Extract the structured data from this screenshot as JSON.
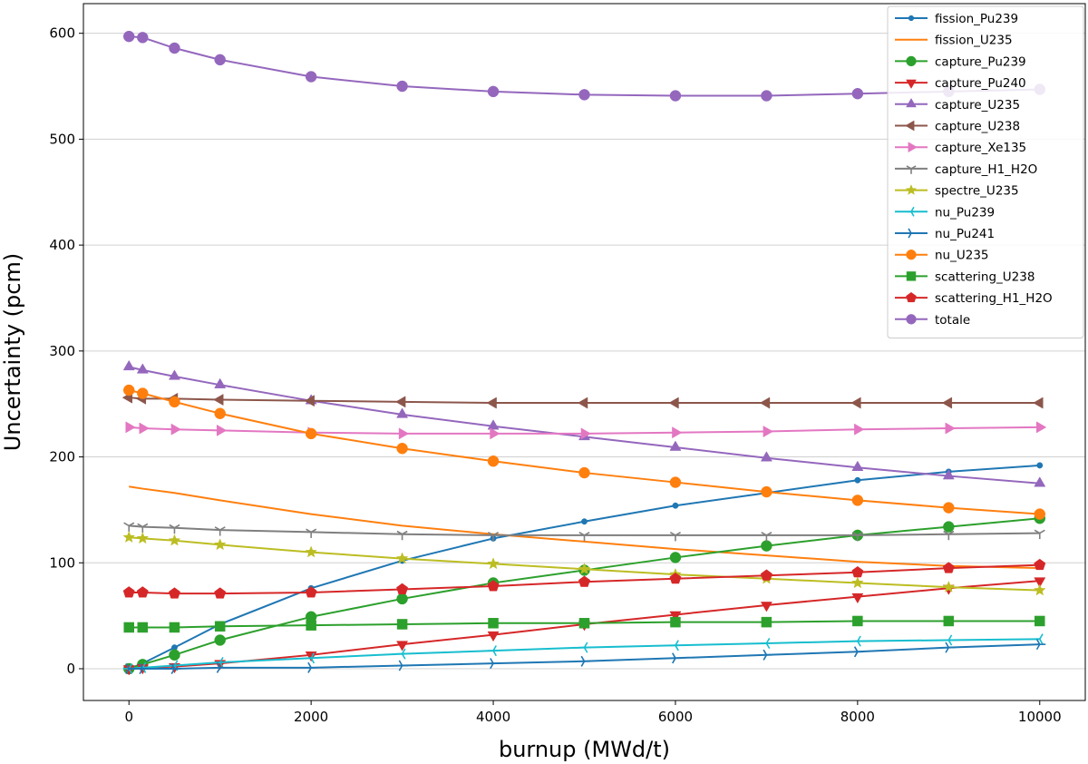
{
  "chart_data": {
    "type": "line",
    "xlabel": "burnup (MWd/t)",
    "ylabel": "Uncertainty (pcm)",
    "xlim": [
      -500,
      10500
    ],
    "ylim": [
      -30,
      628
    ],
    "x_ticks": [
      0,
      2000,
      4000,
      6000,
      8000,
      10000
    ],
    "y_ticks": [
      0,
      100,
      200,
      300,
      400,
      500,
      600
    ],
    "grid": "horizontal",
    "legend_position": "top-right",
    "x": [
      0,
      150,
      500,
      1000,
      2000,
      3000,
      4000,
      5000,
      6000,
      7000,
      8000,
      9000,
      10000
    ],
    "series": [
      {
        "name": "fission_Pu239",
        "color": "#1f77b4",
        "marker": "point",
        "values": [
          0,
          5,
          20,
          42,
          76,
          102,
          123,
          139,
          154,
          166,
          178,
          186,
          192
        ]
      },
      {
        "name": "fission_U235",
        "color": "#ff7f0e",
        "marker": "none",
        "values": [
          172,
          170,
          166,
          159,
          146,
          135,
          127,
          120,
          113,
          107,
          101,
          97,
          95
        ]
      },
      {
        "name": "capture_Pu239",
        "color": "#2ca02c",
        "marker": "circle",
        "values": [
          0,
          4,
          13,
          27,
          49,
          66,
          81,
          93,
          105,
          116,
          126,
          134,
          142
        ]
      },
      {
        "name": "capture_Pu240",
        "color": "#d62728",
        "marker": "triangle-down",
        "values": [
          0,
          1,
          2,
          5,
          13,
          23,
          32,
          42,
          51,
          60,
          68,
          76,
          83
        ]
      },
      {
        "name": "capture_U235",
        "color": "#9467bd",
        "marker": "triangle-up",
        "values": [
          285,
          282,
          276,
          268,
          253,
          240,
          229,
          219,
          209,
          199,
          190,
          182,
          175
        ]
      },
      {
        "name": "capture_U238",
        "color": "#8c564b",
        "marker": "triangle-left",
        "values": [
          256,
          255,
          255,
          254,
          253,
          252,
          251,
          251,
          251,
          251,
          251,
          251,
          251
        ]
      },
      {
        "name": "capture_Xe135",
        "color": "#e377c2",
        "marker": "triangle-right",
        "values": [
          228,
          227,
          226,
          225,
          223,
          222,
          222,
          222,
          223,
          224,
          226,
          227,
          228
        ]
      },
      {
        "name": "capture_H1_H2O",
        "color": "#7f7f7f",
        "marker": "tri-down",
        "values": [
          135,
          134,
          133,
          131,
          129,
          127,
          126,
          126,
          126,
          126,
          126,
          127,
          128
        ]
      },
      {
        "name": "spectre_U235",
        "color": "#bcbd22",
        "marker": "star",
        "values": [
          124,
          123,
          121,
          117,
          110,
          104,
          99,
          94,
          89,
          85,
          81,
          77,
          74
        ]
      },
      {
        "name": "nu_Pu239",
        "color": "#17becf",
        "marker": "tri-left",
        "values": [
          0,
          1,
          3,
          6,
          10,
          14,
          17,
          20,
          22,
          24,
          26,
          27,
          28
        ]
      },
      {
        "name": "nu_Pu241",
        "color": "#1f77b4",
        "marker": "tri-right",
        "values": [
          0,
          0,
          0,
          1,
          1,
          3,
          5,
          7,
          10,
          13,
          16,
          20,
          23
        ]
      },
      {
        "name": "nu_U235",
        "color": "#ff7f0e",
        "marker": "octagon",
        "values": [
          263,
          260,
          252,
          241,
          222,
          208,
          196,
          185,
          176,
          167,
          159,
          152,
          146
        ]
      },
      {
        "name": "scattering_U238",
        "color": "#2ca02c",
        "marker": "square",
        "values": [
          39,
          39,
          39,
          40,
          41,
          42,
          43,
          43,
          44,
          44,
          45,
          45,
          45
        ]
      },
      {
        "name": "scattering_H1_H2O",
        "color": "#d62728",
        "marker": "pentagon",
        "values": [
          72,
          72,
          71,
          71,
          72,
          75,
          78,
          82,
          85,
          88,
          91,
          95,
          98
        ]
      },
      {
        "name": "totale",
        "color": "#9467bd",
        "marker": "octagon",
        "values": [
          597,
          596,
          586,
          575,
          559,
          550,
          545,
          542,
          541,
          541,
          543,
          545,
          547
        ]
      }
    ]
  }
}
